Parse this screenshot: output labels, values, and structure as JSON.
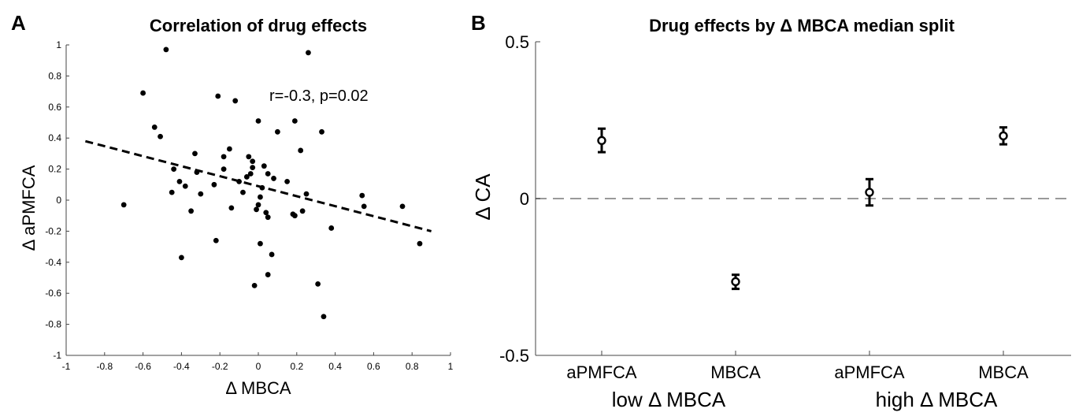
{
  "chart_data": [
    {
      "panel": "A",
      "type": "scatter",
      "title": "Correlation of drug effects",
      "xlabel": "Δ MBCA",
      "ylabel": "Δ aPMFCA",
      "xlim": [
        -1,
        1
      ],
      "ylim": [
        -1,
        1
      ],
      "xticks": [
        "-1",
        "-0.8",
        "-0.6",
        "-0.4",
        "-0.2",
        "0",
        "0.2",
        "0.4",
        "0.6",
        "0.8",
        "1"
      ],
      "yticks": [
        "-1",
        "-0.8",
        "-0.6",
        "-0.4",
        "-0.2",
        "0",
        "0.2",
        "0.4",
        "0.6",
        "0.8",
        "1"
      ],
      "annotation": "r=-0.3, p=0.02",
      "grid": false,
      "points": [
        {
          "x": -0.7,
          "y": -0.03
        },
        {
          "x": -0.6,
          "y": 0.69
        },
        {
          "x": -0.54,
          "y": 0.47
        },
        {
          "x": -0.51,
          "y": 0.41
        },
        {
          "x": -0.48,
          "y": 0.97
        },
        {
          "x": -0.45,
          "y": 0.05
        },
        {
          "x": -0.44,
          "y": 0.2
        },
        {
          "x": -0.41,
          "y": 0.12
        },
        {
          "x": -0.4,
          "y": -0.37
        },
        {
          "x": -0.38,
          "y": 0.09
        },
        {
          "x": -0.35,
          "y": -0.07
        },
        {
          "x": -0.33,
          "y": 0.3
        },
        {
          "x": -0.32,
          "y": 0.18
        },
        {
          "x": -0.3,
          "y": 0.04
        },
        {
          "x": -0.23,
          "y": 0.1
        },
        {
          "x": -0.22,
          "y": -0.26
        },
        {
          "x": -0.21,
          "y": 0.67
        },
        {
          "x": -0.18,
          "y": 0.2
        },
        {
          "x": -0.18,
          "y": 0.28
        },
        {
          "x": -0.15,
          "y": 0.33
        },
        {
          "x": -0.14,
          "y": -0.05
        },
        {
          "x": -0.12,
          "y": 0.64
        },
        {
          "x": -0.1,
          "y": 0.12
        },
        {
          "x": -0.08,
          "y": 0.05
        },
        {
          "x": -0.06,
          "y": 0.15
        },
        {
          "x": -0.05,
          "y": 0.28
        },
        {
          "x": -0.04,
          "y": 0.17
        },
        {
          "x": -0.03,
          "y": 0.25
        },
        {
          "x": -0.03,
          "y": 0.21
        },
        {
          "x": -0.02,
          "y": -0.55
        },
        {
          "x": -0.01,
          "y": -0.06
        },
        {
          "x": 0.0,
          "y": 0.51
        },
        {
          "x": 0.0,
          "y": -0.03
        },
        {
          "x": 0.01,
          "y": -0.28
        },
        {
          "x": 0.01,
          "y": 0.02
        },
        {
          "x": 0.02,
          "y": 0.08
        },
        {
          "x": 0.03,
          "y": 0.22
        },
        {
          "x": 0.04,
          "y": -0.08
        },
        {
          "x": 0.05,
          "y": 0.17
        },
        {
          "x": 0.05,
          "y": -0.11
        },
        {
          "x": 0.05,
          "y": -0.48
        },
        {
          "x": 0.07,
          "y": -0.35
        },
        {
          "x": 0.08,
          "y": 0.14
        },
        {
          "x": 0.1,
          "y": 0.44
        },
        {
          "x": 0.15,
          "y": 0.12
        },
        {
          "x": 0.18,
          "y": -0.09
        },
        {
          "x": 0.19,
          "y": 0.51
        },
        {
          "x": 0.19,
          "y": -0.1
        },
        {
          "x": 0.22,
          "y": 0.32
        },
        {
          "x": 0.23,
          "y": -0.07
        },
        {
          "x": 0.25,
          "y": 0.04
        },
        {
          "x": 0.26,
          "y": 0.95
        },
        {
          "x": 0.31,
          "y": -0.54
        },
        {
          "x": 0.33,
          "y": 0.44
        },
        {
          "x": 0.34,
          "y": -0.75
        },
        {
          "x": 0.38,
          "y": -0.18
        },
        {
          "x": 0.54,
          "y": 0.03
        },
        {
          "x": 0.55,
          "y": -0.04
        },
        {
          "x": 0.75,
          "y": -0.04
        },
        {
          "x": 0.84,
          "y": -0.28
        }
      ],
      "fit_line": {
        "x": [
          -0.9,
          0.9
        ],
        "y": [
          0.38,
          -0.2
        ],
        "style": "dashed"
      }
    },
    {
      "panel": "B",
      "type": "scatter",
      "title": "Drug effects by Δ MBCA median split",
      "ylabel": "Δ CA",
      "ylim": [
        -0.5,
        0.5
      ],
      "yticks": [
        "-0.5",
        "0",
        "0.5"
      ],
      "categories": [
        "aPMFCA",
        "MBCA",
        "aPMFCA",
        "MBCA"
      ],
      "groups": [
        {
          "label": "low Δ MBCA",
          "spans": [
            0,
            1
          ]
        },
        {
          "label": "high Δ MBCA",
          "spans": [
            2,
            3
          ]
        }
      ],
      "values": [
        0.185,
        -0.265,
        0.02,
        0.2
      ],
      "error_low": [
        0.148,
        -0.288,
        -0.022,
        0.173
      ],
      "error_high": [
        0.223,
        -0.243,
        0.062,
        0.227
      ],
      "reference_line": {
        "y": 0,
        "style": "dashed",
        "color": "#999999"
      },
      "grid": false
    }
  ],
  "panel_letters": [
    "A",
    "B"
  ]
}
